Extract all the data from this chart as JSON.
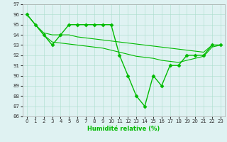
{
  "xlabel": "Humidité relative (%)",
  "xlim": [
    -0.5,
    23.5
  ],
  "ylim": [
    86,
    97
  ],
  "yticks": [
    86,
    87,
    88,
    89,
    90,
    91,
    92,
    93,
    94,
    95,
    96,
    97
  ],
  "xticks": [
    0,
    1,
    2,
    3,
    4,
    5,
    6,
    7,
    8,
    9,
    10,
    11,
    12,
    13,
    14,
    15,
    16,
    17,
    18,
    19,
    20,
    21,
    22,
    23
  ],
  "line1": {
    "x": [
      0,
      1,
      2,
      3,
      4,
      5,
      6,
      7,
      8,
      9,
      10,
      11,
      12,
      13,
      14,
      15,
      16,
      17,
      18,
      19,
      20,
      21,
      22,
      23
    ],
    "y": [
      96,
      95,
      94,
      93,
      94,
      95,
      95,
      95,
      95,
      95,
      95,
      92,
      90,
      88,
      87,
      90,
      89,
      91,
      91,
      92,
      92,
      92,
      93,
      93
    ],
    "color": "#00bb00",
    "marker": "D",
    "markersize": 2.5,
    "linewidth": 1.0
  },
  "line2": {
    "x": [
      0,
      1,
      2,
      3,
      4,
      5,
      6,
      7,
      8,
      9,
      10,
      11,
      12,
      13,
      14,
      15,
      16,
      17,
      18,
      19,
      20,
      21,
      22,
      23
    ],
    "y": [
      96,
      95,
      94.2,
      94.0,
      94.0,
      94.0,
      93.8,
      93.7,
      93.6,
      93.5,
      93.4,
      93.3,
      93.2,
      93.1,
      93.0,
      92.9,
      92.8,
      92.7,
      92.6,
      92.5,
      92.4,
      92.3,
      93.0,
      93.0
    ],
    "color": "#00bb00",
    "linewidth": 0.8
  },
  "line3": {
    "x": [
      0,
      1,
      2,
      3,
      4,
      5,
      6,
      7,
      8,
      9,
      10,
      11,
      12,
      13,
      14,
      15,
      16,
      17,
      18,
      19,
      20,
      21,
      22,
      23
    ],
    "y": [
      96,
      95,
      94.0,
      93.3,
      93.2,
      93.1,
      93.0,
      92.9,
      92.8,
      92.7,
      92.5,
      92.3,
      92.1,
      91.9,
      91.8,
      91.7,
      91.5,
      91.4,
      91.3,
      91.5,
      91.7,
      91.9,
      92.8,
      93.0
    ],
    "color": "#00bb00",
    "linewidth": 0.8
  },
  "bg_color": "#dff2f2",
  "grid_color": "#aaddcc",
  "line_color": "#00bb00",
  "tick_fontsize": 5.0,
  "xlabel_fontsize": 6.0
}
